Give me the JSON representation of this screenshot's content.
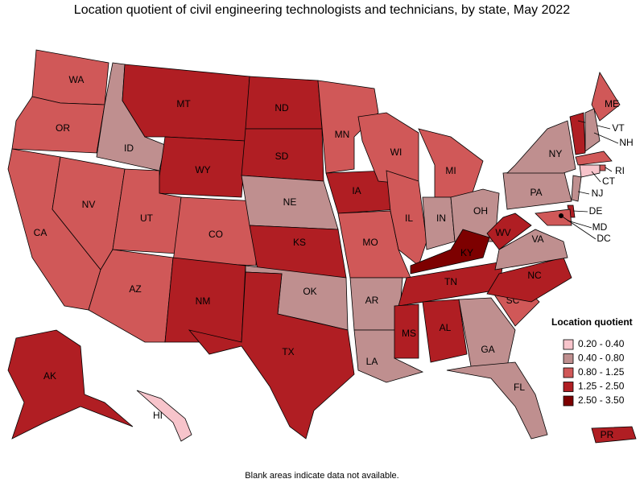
{
  "title": "Location quotient of civil engineering technologists and technicians, by state, May 2022",
  "legend": {
    "title": "Location quotient",
    "items": [
      {
        "label": "0.20 - 0.40",
        "color": "#f7c4cb"
      },
      {
        "label": "0.40 - 0.80",
        "color": "#bf8f8f"
      },
      {
        "label": "0.80 - 1.25",
        "color": "#d05858"
      },
      {
        "label": "1.25 - 2.50",
        "color": "#b01e23"
      },
      {
        "label": "2.50 - 3.50",
        "color": "#7d0000"
      }
    ]
  },
  "states": [
    {
      "label": "WA",
      "color": "#d05858"
    },
    {
      "label": "OR",
      "color": "#d05858"
    },
    {
      "label": "CA",
      "color": "#d05858"
    },
    {
      "label": "NV",
      "color": "#d05858"
    },
    {
      "label": "ID",
      "color": "#bf8f8f"
    },
    {
      "label": "MT",
      "color": "#b01e23"
    },
    {
      "label": "WY",
      "color": "#b01e23"
    },
    {
      "label": "UT",
      "color": "#d05858"
    },
    {
      "label": "CO",
      "color": "#d05858"
    },
    {
      "label": "AZ",
      "color": "#d05858"
    },
    {
      "label": "NM",
      "color": "#b01e23"
    },
    {
      "label": "ND",
      "color": "#b01e23"
    },
    {
      "label": "SD",
      "color": "#b01e23"
    },
    {
      "label": "NE",
      "color": "#bf8f8f"
    },
    {
      "label": "KS",
      "color": "#b01e23"
    },
    {
      "label": "OK",
      "color": "#bf8f8f"
    },
    {
      "label": "TX",
      "color": "#b01e23"
    },
    {
      "label": "MN",
      "color": "#d05858"
    },
    {
      "label": "IA",
      "color": "#b01e23"
    },
    {
      "label": "MO",
      "color": "#d05858"
    },
    {
      "label": "AR",
      "color": "#bf8f8f"
    },
    {
      "label": "LA",
      "color": "#bf8f8f"
    },
    {
      "label": "WI",
      "color": "#d05858"
    },
    {
      "label": "IL",
      "color": "#d05858"
    },
    {
      "label": "MI",
      "color": "#d05858"
    },
    {
      "label": "IN",
      "color": "#bf8f8f"
    },
    {
      "label": "OH",
      "color": "#bf8f8f"
    },
    {
      "label": "KY",
      "color": "#7d0000"
    },
    {
      "label": "TN",
      "color": "#b01e23"
    },
    {
      "label": "MS",
      "color": "#b01e23"
    },
    {
      "label": "AL",
      "color": "#b01e23"
    },
    {
      "label": "GA",
      "color": "#bf8f8f"
    },
    {
      "label": "FL",
      "color": "#bf8f8f"
    },
    {
      "label": "SC",
      "color": "#d05858"
    },
    {
      "label": "NC",
      "color": "#b01e23"
    },
    {
      "label": "VA",
      "color": "#bf8f8f"
    },
    {
      "label": "WV",
      "color": "#b01e23"
    },
    {
      "label": "PA",
      "color": "#bf8f8f"
    },
    {
      "label": "NY",
      "color": "#bf8f8f"
    },
    {
      "label": "ME",
      "color": "#d05858"
    },
    {
      "label": "VT",
      "color": "#b01e23"
    },
    {
      "label": "NH",
      "color": "#bf8f8f"
    },
    {
      "label": null,
      "color": "#d05858"
    },
    {
      "label": "RI",
      "color": "#d05858"
    },
    {
      "label": "CT",
      "color": "#f7c4cb"
    },
    {
      "label": "NJ",
      "color": "#bf8f8f"
    },
    {
      "label": "DE",
      "color": "#b01e23"
    },
    {
      "label": "MD",
      "color": "#d05858"
    },
    {
      "label": "DC",
      "color": "#000000"
    },
    {
      "label": "AK",
      "color": "#b01e23"
    },
    {
      "label": "HI",
      "color": "#f7c4cb"
    },
    {
      "label": "PR",
      "color": "#b01e23"
    }
  ],
  "footnote": "Blank areas indicate data not available."
}
